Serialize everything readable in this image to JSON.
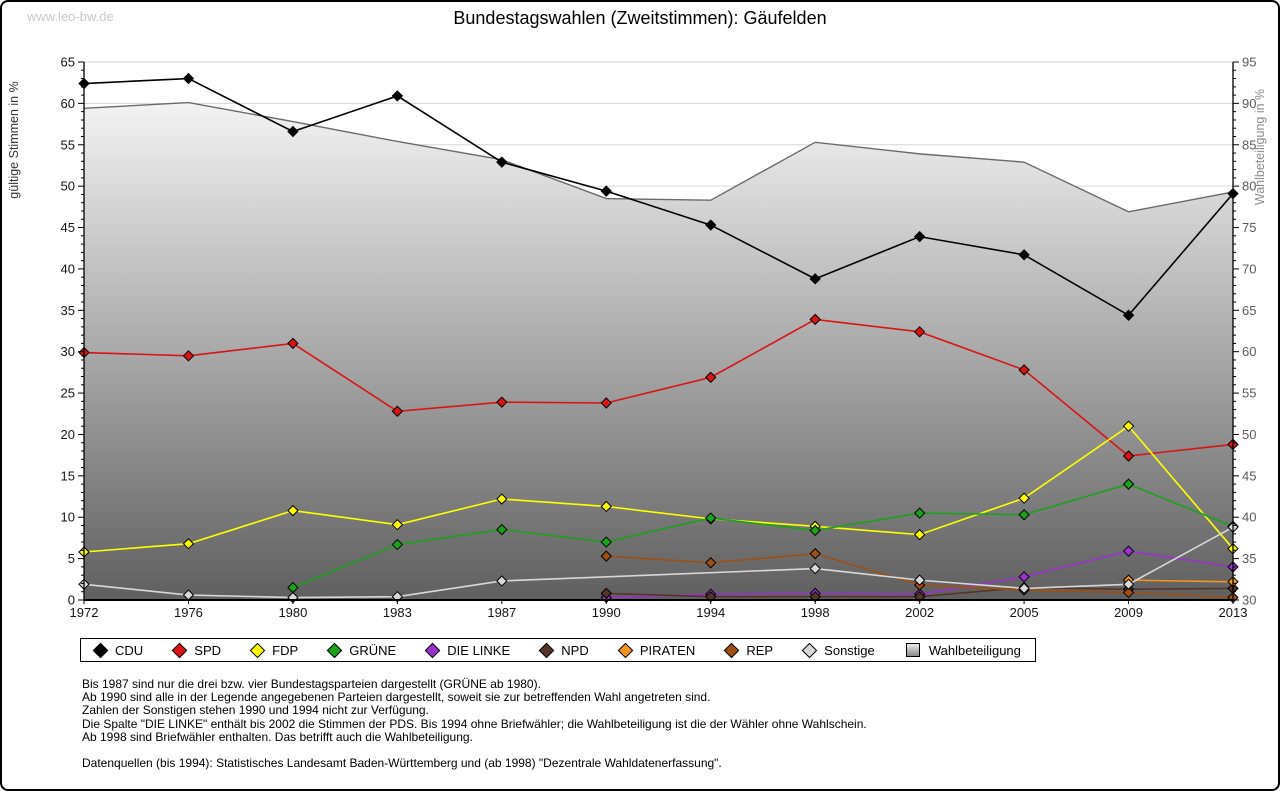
{
  "watermark": "www.leo-bw.de",
  "title": "Bundestagswahlen (Zweitstimmen): Gäufelden",
  "colors": {
    "grid": "#d6d6d6",
    "axis": "#000000",
    "left_axis_text": "#141414",
    "left_axis_title": "#333333",
    "right_axis_text": "#5a5a5a",
    "right_axis_title": "#8c8c8c",
    "area_top": "#ffffff",
    "area_bottom": "#5f5f5f",
    "turnout_line": "#6a6a6a",
    "watermark": "#c8c8c8"
  },
  "chart_data": {
    "type": "line",
    "x": [
      1972,
      1976,
      1980,
      1983,
      1987,
      1990,
      1994,
      1998,
      2002,
      2005,
      2009,
      2013
    ],
    "left_axis": {
      "label": "gültige Stimmen in %",
      "min": 0,
      "max": 65,
      "tick_step": 5,
      "minor_step": 1
    },
    "right_axis": {
      "label": "Wahlbeteiligung in %",
      "min": 30,
      "max": 95,
      "tick_step": 5,
      "minor_step": 1
    },
    "grid": true,
    "legend_position": "bottom",
    "series": [
      {
        "id": "cdu",
        "name": "CDU",
        "color": "#000000",
        "axis": "left",
        "style": "line",
        "values": [
          62.4,
          63.0,
          56.6,
          60.9,
          52.9,
          49.4,
          45.3,
          38.8,
          43.9,
          41.7,
          34.4,
          49.1
        ]
      },
      {
        "id": "spd",
        "name": "SPD",
        "color": "#d91414",
        "axis": "left",
        "style": "line",
        "values": [
          29.9,
          29.5,
          31.0,
          22.8,
          23.9,
          23.8,
          26.9,
          33.9,
          32.4,
          27.8,
          17.4,
          18.8
        ]
      },
      {
        "id": "fdp",
        "name": "FDP",
        "color": "#ffff00",
        "axis": "left",
        "style": "line",
        "values": [
          5.8,
          6.8,
          10.8,
          9.1,
          12.2,
          11.3,
          9.8,
          8.9,
          7.9,
          12.3,
          21.0,
          6.2
        ]
      },
      {
        "id": "gruene",
        "name": "GRÜNE",
        "color": "#1ca11c",
        "axis": "left",
        "style": "line",
        "values": [
          null,
          null,
          1.5,
          6.7,
          8.5,
          7.0,
          9.9,
          8.4,
          10.5,
          10.3,
          14.0,
          8.9
        ]
      },
      {
        "id": "linke",
        "name": "DIE LINKE",
        "color": "#9933cc",
        "axis": "left",
        "style": "line",
        "values": [
          null,
          null,
          null,
          null,
          null,
          0.3,
          0.7,
          0.8,
          0.7,
          2.8,
          5.9,
          4.0
        ]
      },
      {
        "id": "npd",
        "name": "NPD",
        "color": "#553526",
        "axis": "left",
        "style": "line",
        "values": [
          null,
          null,
          null,
          null,
          null,
          0.8,
          0.4,
          0.4,
          0.4,
          1.5,
          1.3,
          1.4
        ]
      },
      {
        "id": "piraten",
        "name": "PIRATEN",
        "color": "#f5951e",
        "axis": "left",
        "style": "line",
        "values": [
          null,
          null,
          null,
          null,
          null,
          null,
          null,
          null,
          null,
          null,
          2.4,
          2.2
        ]
      },
      {
        "id": "rep",
        "name": "REP",
        "color": "#9e4f14",
        "axis": "left",
        "style": "line",
        "values": [
          null,
          null,
          null,
          null,
          null,
          5.3,
          4.5,
          5.6,
          1.8,
          1.2,
          0.9,
          0.3
        ]
      },
      {
        "id": "sonstige",
        "name": "Sonstige",
        "color": "#d8d8d8",
        "axis": "left",
        "style": "line",
        "values": [
          1.9,
          0.6,
          0.3,
          0.4,
          2.3,
          null,
          null,
          3.8,
          2.4,
          1.4,
          1.9,
          8.8
        ]
      },
      {
        "id": "wahlbeteiligung",
        "name": "Wahlbeteiligung",
        "color": "#6a6a6a",
        "axis": "right",
        "style": "area",
        "values": [
          89.4,
          90.1,
          87.8,
          85.4,
          83.2,
          78.5,
          78.3,
          85.3,
          83.9,
          82.9,
          76.9,
          79.3
        ]
      }
    ]
  },
  "footnotes": [
    "Bis 1987 sind nur die drei bzw. vier Bundestagsparteien dargestellt (GRÜNE ab 1980).",
    "Ab 1990 sind alle in der Legende angegebenen Parteien dargestellt, soweit sie zur betreffenden Wahl angetreten sind.",
    "Zahlen der Sonstigen stehen 1990 und 1994 nicht zur Verfügung.",
    "Die Spalte \"DIE LINKE\" enthält bis 2002 die Stimmen der PDS. Bis 1994 ohne Briefwähler; die Wahlbeteiligung ist die der Wähler ohne Wahlschein.",
    "Ab 1998 sind Briefwähler enthalten. Das betrifft auch die Wahlbeteiligung.",
    "",
    "Datenquellen (bis 1994): Statistisches Landesamt Baden-Württemberg und (ab 1998) \"Dezentrale Wahldatenerfassung\"."
  ]
}
